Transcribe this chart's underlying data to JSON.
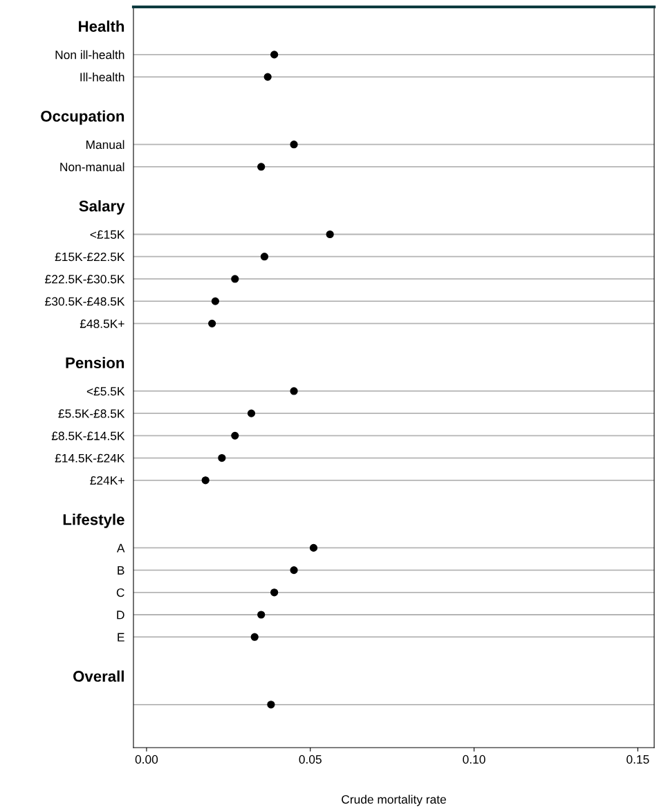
{
  "chart_data": {
    "type": "scatter",
    "orientation": "horizontal",
    "xlabel": "Crude mortality rate",
    "categories": [
      "Health",
      "Non ill-health",
      "Ill-health",
      "Occupation",
      "Manual",
      "Non-manual",
      "Salary",
      "<£15K",
      "£15K-£22.5K",
      "£22.5K-£30.5K",
      "£30.5K-£48.5K",
      "£48.5K+",
      "Pension",
      "<£5.5K",
      "£5.5K-£8.5K",
      "£8.5K-£14.5K",
      "£14.5K-£24K",
      "£24K+",
      "Lifestyle",
      "A",
      "B",
      "C",
      "D",
      "E",
      "Overall",
      null
    ],
    "series": [
      {
        "color": "#000000",
        "values": [
          null,
          0.039,
          0.037,
          null,
          0.045,
          0.035,
          null,
          0.056,
          0.036,
          0.027,
          0.021,
          0.02,
          null,
          0.045,
          0.032,
          0.027,
          0.023,
          0.018,
          null,
          0.051,
          0.045,
          0.039,
          0.035,
          0.033,
          null,
          0.038
        ]
      }
    ],
    "xlim": [
      -0.004,
      0.155
    ],
    "xticks": [
      {
        "value": 0,
        "label": "0.00"
      },
      {
        "value": 0.05,
        "label": "0.05"
      },
      {
        "value": 0.1,
        "label": "0.10"
      },
      {
        "value": 0.15,
        "label": "0.15"
      }
    ],
    "grid": "y",
    "marker": "circle"
  }
}
